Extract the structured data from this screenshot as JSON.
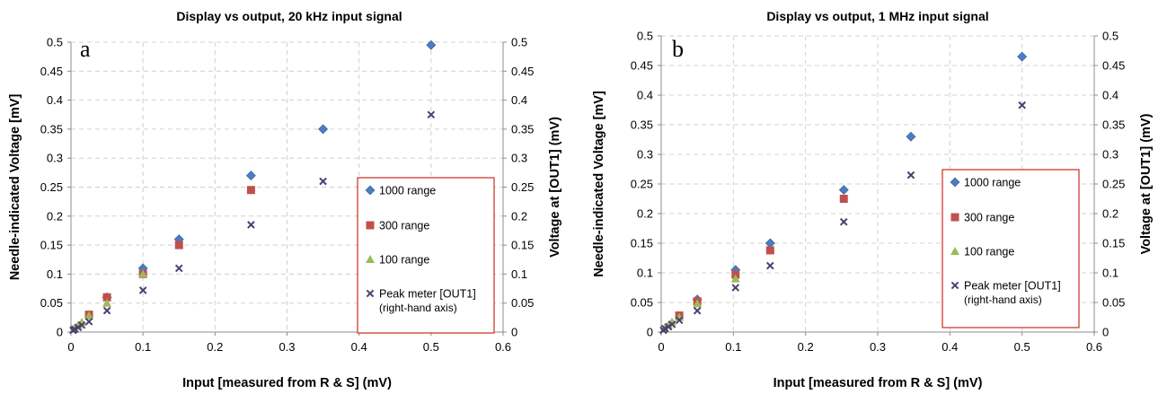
{
  "colors": {
    "s1000": "#4a7ec2",
    "s300": "#c0504d",
    "s100": "#9bbb59",
    "peak": "#4b3f72",
    "legend_border": "#d23a2e"
  },
  "chart_data": [
    {
      "type": "scatter",
      "panel_letter": "a",
      "title": "Display vs output, 20 kHz input signal",
      "xlabel": "Input [measured from R & S] (mV)",
      "ylabel": "Needle-indicated Voltage [mV]",
      "y2label": "Voltage at [OUT1] (mV)",
      "xlim": [
        0,
        0.6
      ],
      "ylim": [
        0,
        0.5
      ],
      "y2lim": [
        0,
        0.5
      ],
      "xticks": [
        "0",
        "0.1",
        "0.2",
        "0.3",
        "0.4",
        "0.5",
        "0.6"
      ],
      "yticks": [
        "0",
        "0.05",
        "0.1",
        "0.15",
        "0.2",
        "0.25",
        "0.3",
        "0.35",
        "0.4",
        "0.45",
        "0.5"
      ],
      "grid": true,
      "legend_position": "right",
      "legend": [
        "1000 range",
        "300 range",
        "100 range",
        "Peak meter [OUT1]",
        "(right-hand axis)"
      ],
      "series": [
        {
          "name": "1000 range",
          "marker": "diamond",
          "x": [
            0.05,
            0.1,
            0.15,
            0.25,
            0.35,
            0.5
          ],
          "y": [
            0.06,
            0.11,
            0.16,
            0.27,
            0.35,
            0.495
          ]
        },
        {
          "name": "300 range",
          "marker": "square",
          "x": [
            0.025,
            0.05,
            0.1,
            0.15,
            0.25
          ],
          "y": [
            0.03,
            0.06,
            0.1,
            0.15,
            0.245
          ]
        },
        {
          "name": "100 range",
          "marker": "triangle",
          "x": [
            0.005,
            0.01,
            0.015,
            0.025,
            0.05,
            0.1
          ],
          "y": [
            0.007,
            0.012,
            0.017,
            0.028,
            0.05,
            0.1
          ]
        },
        {
          "name": "Peak meter [OUT1]",
          "marker": "x",
          "axis": "right",
          "x": [
            0.003,
            0.005,
            0.01,
            0.015,
            0.025,
            0.05,
            0.1,
            0.15,
            0.25,
            0.35,
            0.5
          ],
          "y": [
            0.003,
            0.005,
            0.008,
            0.012,
            0.018,
            0.037,
            0.072,
            0.11,
            0.185,
            0.26,
            0.375
          ]
        }
      ]
    },
    {
      "type": "scatter",
      "panel_letter": "b",
      "title": "Display vs output, 1 MHz input signal",
      "xlabel": "Input [measured from R & S] (mV)",
      "ylabel": "Needle-indicated Voltage [mV]",
      "y2label": "Voltage at [OUT1] (mV)",
      "xlim": [
        0,
        0.6
      ],
      "ylim": [
        0,
        0.5
      ],
      "y2lim": [
        0,
        0.5
      ],
      "xticks": [
        "0",
        "0.1",
        "0.2",
        "0.3",
        "0.4",
        "0.5",
        "0.6"
      ],
      "yticks": [
        "0",
        "0.05",
        "0.1",
        "0.15",
        "0.2",
        "0.25",
        "0.3",
        "0.35",
        "0.4",
        "0.45",
        "0.5"
      ],
      "grid": true,
      "legend_position": "right",
      "legend": [
        "1000 range",
        "300 range",
        "100 range",
        "Peak meter [OUT1]",
        "(right-hand axis)"
      ],
      "series": [
        {
          "name": "1000 range",
          "marker": "diamond",
          "x": [
            0.05,
            0.103,
            0.151,
            0.253,
            0.346,
            0.5
          ],
          "y": [
            0.055,
            0.105,
            0.15,
            0.24,
            0.33,
            0.465
          ]
        },
        {
          "name": "300 range",
          "marker": "square",
          "x": [
            0.025,
            0.05,
            0.103,
            0.151,
            0.253
          ],
          "y": [
            0.028,
            0.052,
            0.097,
            0.138,
            0.225
          ]
        },
        {
          "name": "100 range",
          "marker": "triangle",
          "x": [
            0.005,
            0.01,
            0.015,
            0.025,
            0.05,
            0.103
          ],
          "y": [
            0.007,
            0.012,
            0.017,
            0.025,
            0.048,
            0.09
          ]
        },
        {
          "name": "Peak meter [OUT1]",
          "marker": "x",
          "axis": "right",
          "x": [
            0.003,
            0.005,
            0.01,
            0.015,
            0.025,
            0.05,
            0.103,
            0.151,
            0.253,
            0.346,
            0.5
          ],
          "y": [
            0.003,
            0.006,
            0.009,
            0.013,
            0.02,
            0.036,
            0.075,
            0.112,
            0.186,
            0.265,
            0.383
          ]
        }
      ]
    }
  ]
}
